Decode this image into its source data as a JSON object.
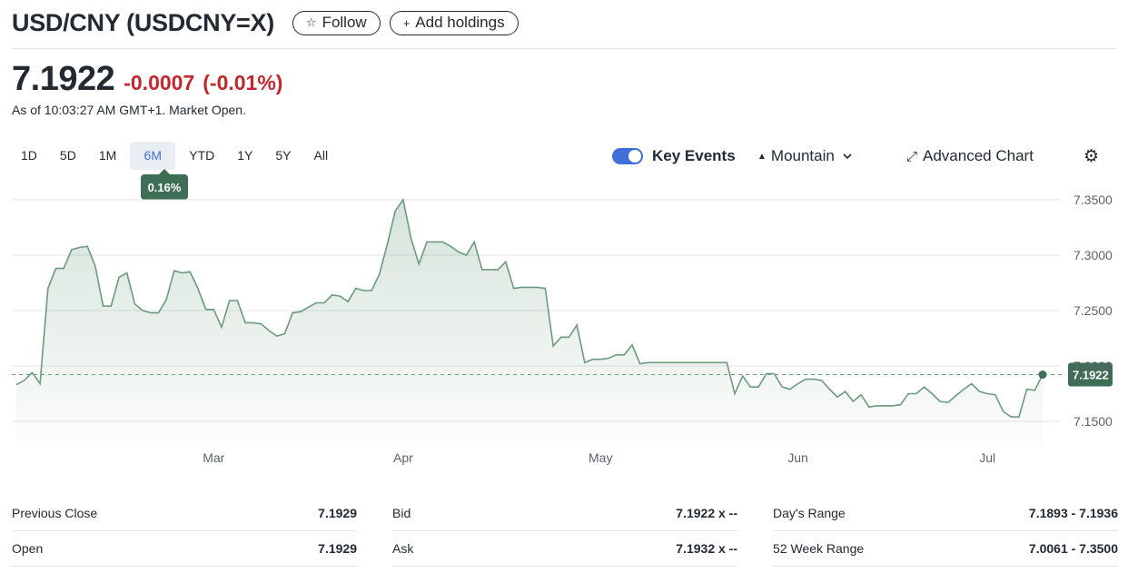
{
  "header": {
    "title": "USD/CNY (USDCNY=X)",
    "follow_icon": "☆",
    "follow_label": "Follow",
    "add_icon": "+",
    "add_label": "Add holdings"
  },
  "quote": {
    "price": "7.1922",
    "change": "-0.0007",
    "change_percent": "(-0.01%)",
    "as_of": "As of 10:03:27 AM GMT+1. Market Open.",
    "change_color": "#c2272d"
  },
  "ranges": [
    "1D",
    "5D",
    "1M",
    "6M",
    "YTD",
    "1Y",
    "5Y",
    "All"
  ],
  "active_range": "6M",
  "range_badge": "0.16%",
  "controls": {
    "key_events": "Key Events",
    "key_events_on": true,
    "chart_type": "Mountain",
    "chart_type_icon": "▲",
    "advanced_icon": "⤢",
    "advanced": "Advanced Chart",
    "settings_icon": "⚙"
  },
  "chart_data": {
    "type": "area",
    "ylim": [
      7.14,
      7.36
    ],
    "y_ticks": [
      "7.3500",
      "7.3000",
      "7.2500",
      "7.2000",
      "7.1500"
    ],
    "x_ticks": [
      "Mar",
      "Apr",
      "May",
      "Jun",
      "Jul"
    ],
    "x_tick_positions": [
      25,
      49,
      74,
      99,
      123
    ],
    "current_value": 7.1922,
    "current_label": "7.1922",
    "line_color": "#6b9a7d",
    "values": [
      7.183,
      7.187,
      7.194,
      7.184,
      7.27,
      7.288,
      7.288,
      7.305,
      7.307,
      7.308,
      7.29,
      7.254,
      7.254,
      7.28,
      7.284,
      7.256,
      7.25,
      7.248,
      7.248,
      7.26,
      7.286,
      7.284,
      7.285,
      7.27,
      7.251,
      7.251,
      7.235,
      7.259,
      7.259,
      7.239,
      7.239,
      7.238,
      7.232,
      7.227,
      7.229,
      7.248,
      7.249,
      7.253,
      7.257,
      7.257,
      7.264,
      7.263,
      7.258,
      7.27,
      7.268,
      7.268,
      7.283,
      7.31,
      7.34,
      7.35,
      7.315,
      7.292,
      7.312,
      7.312,
      7.312,
      7.308,
      7.303,
      7.3,
      7.312,
      7.287,
      7.287,
      7.287,
      7.294,
      7.27,
      7.271,
      7.271,
      7.271,
      7.27,
      7.218,
      7.226,
      7.226,
      7.237,
      7.203,
      7.206,
      7.206,
      7.207,
      7.21,
      7.21,
      7.219,
      7.202,
      7.203,
      7.203,
      7.203,
      7.203,
      7.203,
      7.203,
      7.203,
      7.203,
      7.203,
      7.203,
      7.203,
      7.175,
      7.191,
      7.181,
      7.181,
      7.193,
      7.193,
      7.181,
      7.179,
      7.184,
      7.188,
      7.188,
      7.187,
      7.179,
      7.172,
      7.177,
      7.168,
      7.174,
      7.163,
      7.164,
      7.164,
      7.164,
      7.165,
      7.175,
      7.175,
      7.181,
      7.175,
      7.168,
      7.167,
      7.173,
      7.179,
      7.184,
      7.177,
      7.175,
      7.174,
      7.159,
      7.154,
      7.154,
      7.179,
      7.178,
      7.1922
    ]
  },
  "stats": [
    [
      {
        "label": "Previous Close",
        "value": "7.1929"
      },
      {
        "label": "Open",
        "value": "7.1929"
      }
    ],
    [
      {
        "label": "Bid",
        "value": "7.1922 x --"
      },
      {
        "label": "Ask",
        "value": "7.1932 x --"
      }
    ],
    [
      {
        "label": "Day's Range",
        "value": "7.1893 - 7.1936"
      },
      {
        "label": "52 Week Range",
        "value": "7.0061 - 7.3500"
      }
    ]
  ]
}
